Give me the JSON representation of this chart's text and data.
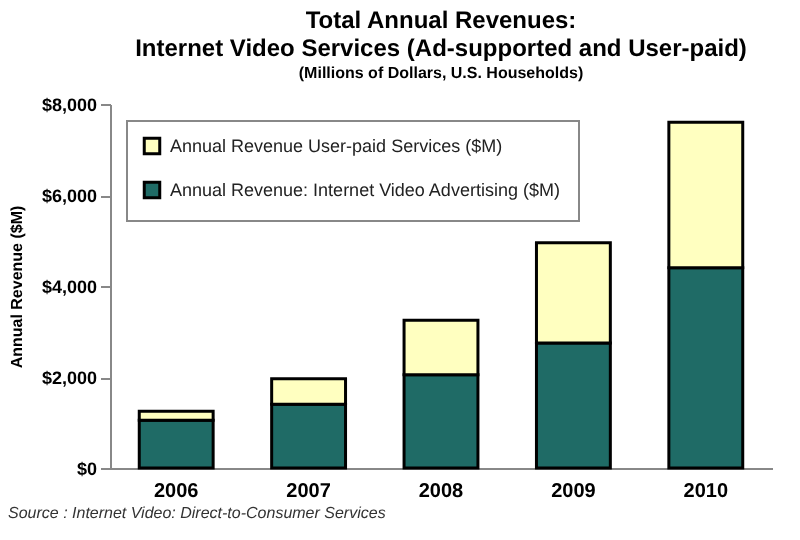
{
  "chart_data": {
    "type": "bar",
    "title": "Total Annual Revenues: Internet Video Services (Ad-supported and User-paid)",
    "subtitle": "(Millions of Dollars, U.S. Households)",
    "ylabel": "Annual Revenue ($M)",
    "categories": [
      "2006",
      "2007",
      "2008",
      "2009",
      "2010"
    ],
    "series": [
      {
        "name": "Annual Revenue: Internet Video Advertising ($M)",
        "color": "#1f6b66",
        "values": [
          1050,
          1400,
          2050,
          2750,
          4400
        ]
      },
      {
        "name": "Annual Revenue  User-paid Services ($M)",
        "color": "#ffffc0",
        "values": [
          200,
          560,
          1200,
          2200,
          3200
        ]
      }
    ],
    "stacked": true,
    "ylim": [
      0,
      8000
    ],
    "yticks": [
      {
        "value": 0,
        "label": "$0"
      },
      {
        "value": 2000,
        "label": "$2,000"
      },
      {
        "value": 4000,
        "label": "$4,000"
      },
      {
        "value": 6000,
        "label": "$6,000"
      },
      {
        "value": 8000,
        "label": "$8,000"
      }
    ],
    "grid": false,
    "legend": "top left",
    "annotations": [
      "Source : Internet Video: Direct-to-Consumer Services"
    ]
  }
}
